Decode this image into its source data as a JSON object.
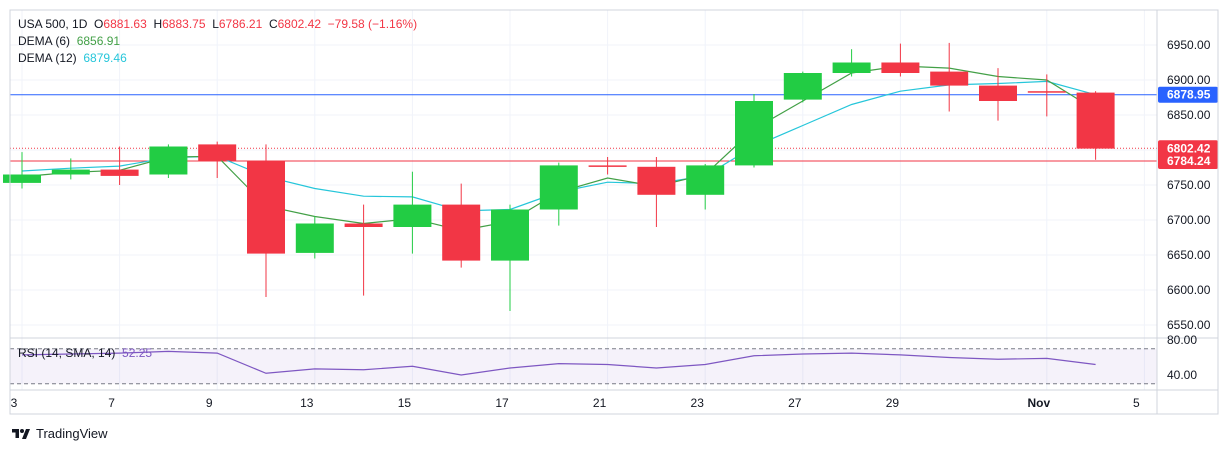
{
  "legend": {
    "symbol": "USA 500, 1D",
    "open_label": "O",
    "open": "6881.63",
    "high_label": "H",
    "high": "6883.75",
    "low_label": "L",
    "low": "6786.21",
    "close_label": "C",
    "close": "6802.42",
    "change": "−79.58 (−1.16%)",
    "dema6_label": "DEMA (6)",
    "dema6_value": "6856.91",
    "dema12_label": "DEMA (12)",
    "dema12_value": "6879.46"
  },
  "rsi_legend": {
    "label": "RSI (14, SMA, 14)",
    "value": "52.25"
  },
  "branding": "TradingView",
  "colors": {
    "up": "#22CC44",
    "down": "#F23645",
    "dema6": "#43A047",
    "dema12": "#26C6DA",
    "hline_blue": "#2962FF",
    "rsi": "#7E57C2"
  },
  "chart_data": {
    "type": "candlestick",
    "x_ticks": [
      {
        "label": "3",
        "bar": 0
      },
      {
        "label": "7",
        "bar": 2
      },
      {
        "label": "9",
        "bar": 4
      },
      {
        "label": "13",
        "bar": 6
      },
      {
        "label": "15",
        "bar": 8
      },
      {
        "label": "17",
        "bar": 10
      },
      {
        "label": "21",
        "bar": 12
      },
      {
        "label": "23",
        "bar": 14
      },
      {
        "label": "27",
        "bar": 16
      },
      {
        "label": "29",
        "bar": 18
      },
      {
        "label": "Nov",
        "bar": 21
      },
      {
        "label": "5",
        "bar": 23
      }
    ],
    "y_ticks": [
      "6950.00",
      "6900.00",
      "6850.00",
      "6750.00",
      "6700.00",
      "6650.00",
      "6600.00",
      "6550.00"
    ],
    "ylim": [
      6530,
      6990
    ],
    "candles": [
      {
        "o": 6753,
        "h": 6797,
        "l": 6745,
        "c": 6765
      },
      {
        "o": 6765,
        "h": 6788,
        "l": 6758,
        "c": 6772
      },
      {
        "o": 6772,
        "h": 6805,
        "l": 6750,
        "c": 6763
      },
      {
        "o": 6765,
        "h": 6808,
        "l": 6760,
        "c": 6805
      },
      {
        "o": 6808,
        "h": 6812,
        "l": 6760,
        "c": 6785
      },
      {
        "o": 6785,
        "h": 6808,
        "l": 6590,
        "c": 6652
      },
      {
        "o": 6653,
        "h": 6705,
        "l": 6645,
        "c": 6695
      },
      {
        "o": 6695,
        "h": 6722,
        "l": 6592,
        "c": 6690
      },
      {
        "o": 6690,
        "h": 6769,
        "l": 6652,
        "c": 6722
      },
      {
        "o": 6722,
        "h": 6752,
        "l": 6632,
        "c": 6642
      },
      {
        "o": 6642,
        "h": 6722,
        "l": 6570,
        "c": 6715
      },
      {
        "o": 6715,
        "h": 6782,
        "l": 6692,
        "c": 6778
      },
      {
        "o": 6778,
        "h": 6790,
        "l": 6765,
        "c": 6776
      },
      {
        "o": 6776,
        "h": 6790,
        "l": 6690,
        "c": 6736
      },
      {
        "o": 6736,
        "h": 6780,
        "l": 6715,
        "c": 6778
      },
      {
        "o": 6778,
        "h": 6880,
        "l": 6775,
        "c": 6870
      },
      {
        "o": 6872,
        "h": 6912,
        "l": 6868,
        "c": 6910
      },
      {
        "o": 6910,
        "h": 6944,
        "l": 6905,
        "c": 6925
      },
      {
        "o": 6925,
        "h": 6952,
        "l": 6905,
        "c": 6910
      },
      {
        "o": 6912,
        "h": 6953,
        "l": 6855,
        "c": 6892
      },
      {
        "o": 6892,
        "h": 6917,
        "l": 6842,
        "c": 6870
      },
      {
        "o": 6884,
        "h": 6908,
        "l": 6848,
        "c": 6882
      },
      {
        "o": 6882,
        "h": 6884,
        "l": 6786,
        "c": 6802
      }
    ],
    "dema6": [
      6762,
      6768,
      6771,
      6790,
      6791,
      6720,
      6705,
      6695,
      6702,
      6685,
      6698,
      6740,
      6760,
      6748,
      6765,
      6830,
      6870,
      6910,
      6920,
      6917,
      6905,
      6900,
      6857
    ],
    "dema12": [
      6770,
      6774,
      6777,
      6789,
      6791,
      6762,
      6745,
      6734,
      6733,
      6713,
      6715,
      6740,
      6754,
      6752,
      6763,
      6805,
      6835,
      6865,
      6884,
      6893,
      6895,
      6898,
      6879
    ],
    "hlines": [
      {
        "value": 6878.95,
        "label": "6878.95",
        "color": "#2962FF",
        "style": "solid"
      },
      {
        "value": 6802.42,
        "label": "6802.42",
        "color": "#F23645",
        "style": "dotted"
      },
      {
        "value": 6784.24,
        "label": "6784.24",
        "color": "#F23645",
        "style": "solid"
      }
    ],
    "rsi": {
      "ticks": [
        "80.00",
        "40.00"
      ],
      "upper": 70,
      "lower": 30,
      "ylim": [
        25,
        85
      ],
      "values": [
        63,
        64,
        65,
        67,
        65,
        42,
        47,
        46,
        50,
        40,
        48,
        53,
        52,
        48,
        52,
        62,
        64,
        65,
        63,
        60,
        58,
        59,
        52
      ]
    }
  }
}
